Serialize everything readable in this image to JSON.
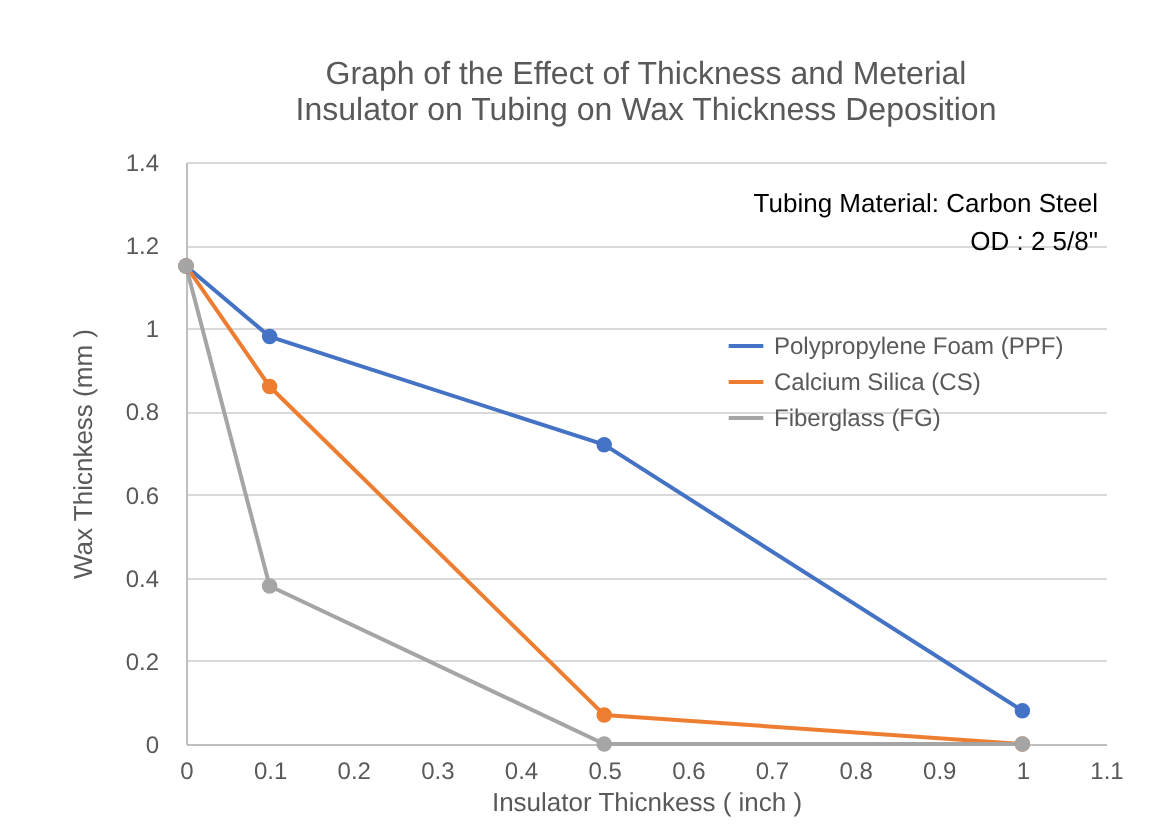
{
  "chart_data": {
    "type": "line",
    "title": "Graph of the Effect of Thickness and Meterial Insulator on Tubing on Wax Thickness Deposition",
    "xlabel": "Insulator Thicnkess ( inch )",
    "ylabel": "Wax Thicnkess (mm )",
    "annotations": [
      "Tubing Material: Carbon Steel",
      "OD : 2 5/8\""
    ],
    "x": [
      0,
      0.1,
      0.5,
      1
    ],
    "series": [
      {
        "name": "Polypropylene Foam (PPF)",
        "color": "#4472c4",
        "values": [
          1.15,
          0.98,
          0.72,
          0.08
        ]
      },
      {
        "name": "Calcium Silica (CS)",
        "color": "#ed7d31",
        "values": [
          1.15,
          0.86,
          0.07,
          0
        ]
      },
      {
        "name": "Fiberglass (FG)",
        "color": "#a5a5a5",
        "values": [
          1.15,
          0.38,
          0,
          0
        ]
      }
    ],
    "xlim": [
      0,
      1.1
    ],
    "xticks": [
      0,
      0.1,
      0.2,
      0.3,
      0.4,
      0.5,
      0.6,
      0.7,
      0.8,
      0.9,
      1,
      1.1
    ],
    "ylim": [
      0,
      1.4
    ],
    "yticks": [
      0,
      0.2,
      0.4,
      0.6,
      0.8,
      1,
      1.2,
      1.4
    ],
    "grid": "y",
    "legend": "right",
    "marker": "circle",
    "line_style": "solid"
  }
}
